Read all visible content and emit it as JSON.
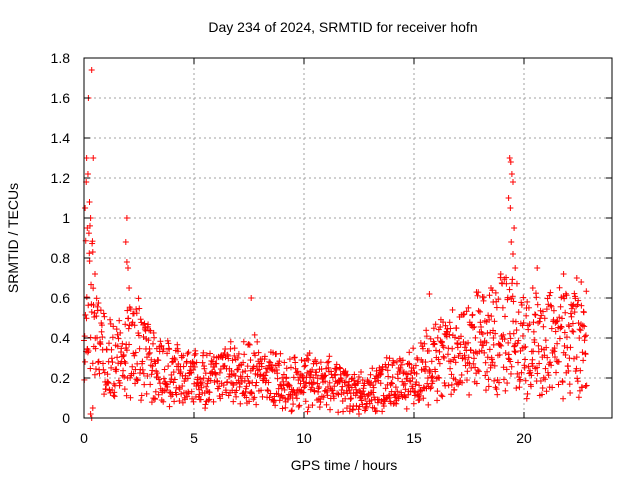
{
  "chart_data": {
    "type": "scatter",
    "title": "Day 234 of 2024, SRMTID for receiver hofn",
    "xlabel": "GPS time / hours",
    "ylabel": "SRMTID / TECUs",
    "xlim": [
      0,
      24
    ],
    "ylim": [
      0,
      1.8
    ],
    "xticks": [
      0,
      5,
      10,
      15,
      20
    ],
    "yticks": [
      0,
      0.2,
      0.4,
      0.6,
      0.8,
      1,
      1.2,
      1.4,
      1.6,
      1.8
    ],
    "xtick_labels": [
      "0",
      "5",
      "10",
      "15",
      "20"
    ],
    "ytick_labels": [
      "0",
      "0.2",
      "0.4",
      "0.6",
      "0.8",
      "1",
      "1.2",
      "1.4",
      "1.6",
      "1.8"
    ],
    "grid": true,
    "marker": "plus",
    "color": "#ff0000",
    "x_end": 22.85,
    "envelope": [
      [
        0.0,
        0.5
      ],
      [
        0.3,
        0.6
      ],
      [
        0.6,
        0.4
      ],
      [
        1.0,
        0.32
      ],
      [
        1.5,
        0.3
      ],
      [
        2.0,
        0.35
      ],
      [
        2.5,
        0.35
      ],
      [
        3.0,
        0.28
      ],
      [
        4.0,
        0.22
      ],
      [
        5.0,
        0.2
      ],
      [
        6.0,
        0.2
      ],
      [
        7.0,
        0.22
      ],
      [
        7.5,
        0.25
      ],
      [
        8.0,
        0.22
      ],
      [
        9.0,
        0.17
      ],
      [
        10.0,
        0.18
      ],
      [
        11.0,
        0.18
      ],
      [
        12.0,
        0.13
      ],
      [
        13.0,
        0.13
      ],
      [
        14.0,
        0.18
      ],
      [
        15.0,
        0.2
      ],
      [
        16.0,
        0.28
      ],
      [
        17.0,
        0.32
      ],
      [
        18.0,
        0.38
      ],
      [
        19.0,
        0.42
      ],
      [
        19.5,
        0.5
      ],
      [
        20.0,
        0.35
      ],
      [
        21.0,
        0.38
      ],
      [
        22.0,
        0.38
      ],
      [
        22.9,
        0.4
      ]
    ],
    "outliers": [
      [
        0.35,
        1.74
      ],
      [
        0.2,
        1.6
      ],
      [
        0.12,
        1.3
      ],
      [
        0.42,
        1.3
      ],
      [
        0.18,
        1.22
      ],
      [
        0.1,
        1.18
      ],
      [
        0.25,
        1.08
      ],
      [
        0.05,
        1.05
      ],
      [
        0.3,
        1.0
      ],
      [
        0.15,
        0.95
      ],
      [
        0.4,
        0.83
      ],
      [
        0.5,
        0.72
      ],
      [
        1.95,
        1.0
      ],
      [
        1.9,
        0.88
      ],
      [
        1.95,
        0.78
      ],
      [
        2.0,
        0.75
      ],
      [
        2.05,
        0.65
      ],
      [
        7.6,
        0.6
      ],
      [
        15.7,
        0.62
      ],
      [
        18.5,
        0.65
      ],
      [
        18.6,
        0.58
      ],
      [
        19.35,
        1.3
      ],
      [
        19.4,
        1.28
      ],
      [
        19.45,
        1.22
      ],
      [
        19.5,
        1.18
      ],
      [
        19.3,
        1.1
      ],
      [
        19.38,
        1.05
      ],
      [
        19.55,
        0.95
      ],
      [
        19.42,
        0.88
      ],
      [
        19.5,
        0.82
      ],
      [
        19.6,
        0.75
      ],
      [
        20.6,
        0.75
      ],
      [
        20.4,
        0.65
      ],
      [
        21.8,
        0.72
      ],
      [
        22.4,
        0.7
      ],
      [
        22.6,
        0.68
      ],
      [
        0.3,
        0.02
      ],
      [
        0.35,
        0.0
      ],
      [
        0.4,
        0.05
      ],
      [
        12.5,
        0.02
      ],
      [
        22.8,
        0.16
      ]
    ]
  }
}
